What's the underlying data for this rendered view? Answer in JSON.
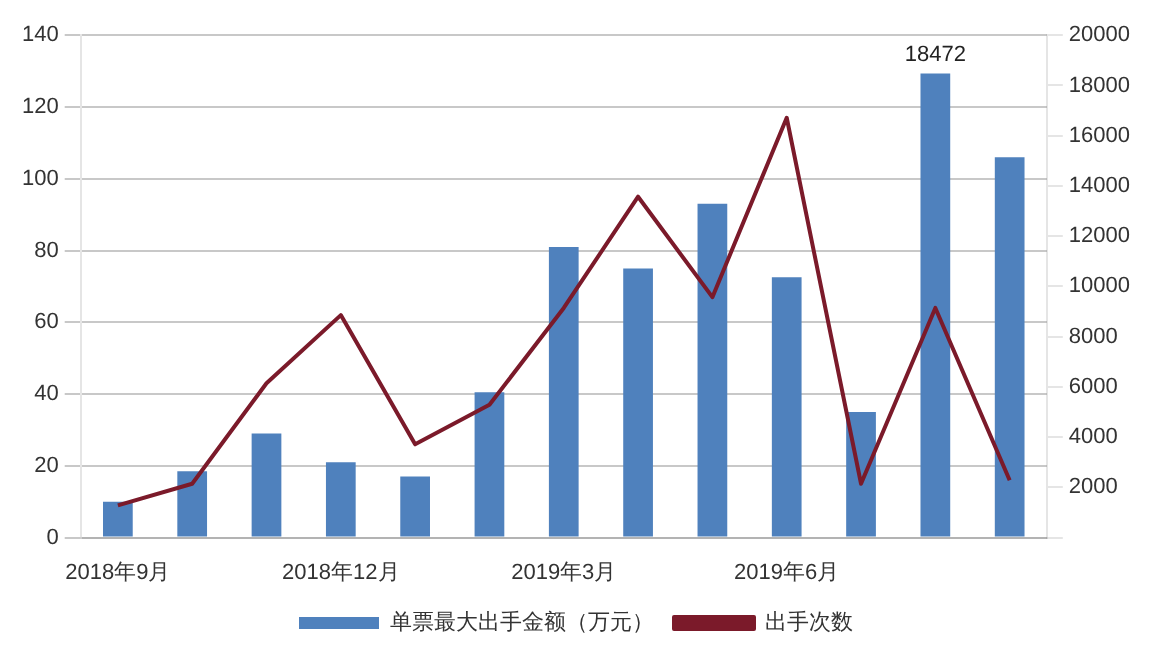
{
  "chart_data": {
    "type": "bar",
    "categories": [
      "2018年9月",
      null,
      null,
      "2018年12月",
      null,
      null,
      "2019年3月",
      null,
      null,
      "2019年6月",
      null,
      null,
      null
    ],
    "series": [
      {
        "name": "单票最大出手金额（万元）",
        "axis": "y2",
        "color": "#4f81bd",
        "values": [
          1430,
          2640,
          4140,
          3000,
          2430,
          5790,
          11570,
          10710,
          13290,
          10360,
          5000,
          18472,
          15140
        ],
        "value_labels": [
          null,
          null,
          null,
          null,
          null,
          null,
          null,
          null,
          null,
          null,
          null,
          "18472",
          null
        ]
      },
      {
        "name": "出手次数",
        "type": "line",
        "axis": "y",
        "color": "#7b1a2a",
        "values": [
          9,
          15,
          43,
          62,
          26,
          37,
          64,
          95,
          67,
          117,
          15,
          64,
          16
        ]
      }
    ],
    "ylim": [
      0,
      140
    ],
    "yticks": [
      0,
      20,
      40,
      60,
      80,
      100,
      120,
      140
    ],
    "y2lim": [
      0,
      20000
    ],
    "y2ticks": [
      {
        "value": 0,
        "label": null
      },
      2000,
      4000,
      6000,
      8000,
      10000,
      12000,
      14000,
      16000,
      18000,
      20000
    ],
    "grid": "y",
    "legend": "bottom",
    "marker": "none"
  }
}
